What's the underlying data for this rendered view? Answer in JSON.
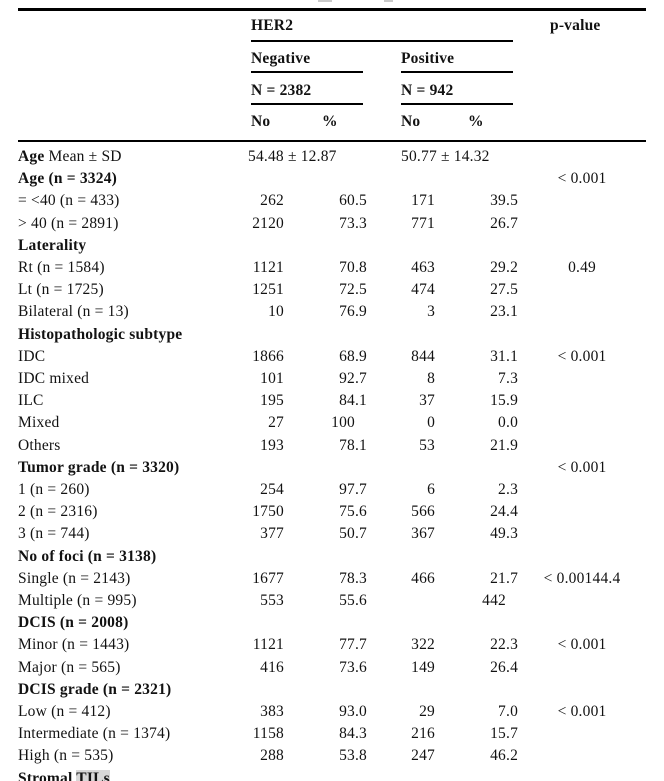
{
  "header": {
    "group_label": "HER2",
    "p_value_label": "p-value",
    "subgroups": [
      {
        "label": "Negative",
        "n_label": "N = 2382",
        "no_label": "No",
        "pct_label": "%"
      },
      {
        "label": "Positive",
        "n_label": "N = 942",
        "no_label": "No",
        "pct_label": "%"
      }
    ]
  },
  "rows": [
    {
      "t": "span",
      "label_bold": "Age",
      "label_rest": " Mean ± SD",
      "neg": "54.48 ± 12.87",
      "pos": "50.77 ± 14.32",
      "pv": ""
    },
    {
      "t": "sec",
      "label": "Age (n = 3324)",
      "pv": "< 0.001"
    },
    {
      "t": "d",
      "label": "= <40 (n = 433)",
      "n1": "262",
      "p1": "60.5",
      "n2": "171",
      "p2": "39.5",
      "pv": ""
    },
    {
      "t": "d",
      "label": "> 40 (n = 2891)",
      "n1": "2120",
      "p1": "73.3",
      "n2": "771",
      "p2": "26.7",
      "pv": ""
    },
    {
      "t": "sec",
      "label": "Laterality",
      "pv": ""
    },
    {
      "t": "d",
      "label": "Rt (n = 1584)",
      "n1": "1121",
      "p1": "70.8",
      "n2": "463",
      "p2": "29.2",
      "pv": "0.49"
    },
    {
      "t": "d",
      "label": "Lt (n = 1725)",
      "n1": "1251",
      "p1": "72.5",
      "n2": "474",
      "p2": "27.5",
      "pv": ""
    },
    {
      "t": "d",
      "label": "Bilateral (n = 13)",
      "n1": "10",
      "p1": "76.9",
      "n2": "3",
      "p2": "23.1",
      "pv": ""
    },
    {
      "t": "sec",
      "label": "Histopathologic subtype",
      "pv": ""
    },
    {
      "t": "d",
      "label": "IDC",
      "n1": "1866",
      "p1": "68.9",
      "n2": "844",
      "p2": "31.1",
      "pv": "< 0.001"
    },
    {
      "t": "d",
      "label": "IDC mixed",
      "n1": "101",
      "p1": "92.7",
      "n2": "8",
      "p2": "7.3",
      "pv": ""
    },
    {
      "t": "d",
      "label": "ILC",
      "n1": "195",
      "p1": "84.1",
      "n2": "37",
      "p2": "15.9",
      "pv": ""
    },
    {
      "t": "d",
      "label": "Mixed",
      "n1": "27",
      "p1": "100",
      "pad1": true,
      "n2": "0",
      "p2": "0.0",
      "pv": ""
    },
    {
      "t": "d",
      "label": "Others",
      "n1": "193",
      "p1": "78.1",
      "n2": "53",
      "p2": "21.9",
      "pv": ""
    },
    {
      "t": "sec",
      "label": "Tumor grade (n = 3320)",
      "pv": "< 0.001"
    },
    {
      "t": "d",
      "label": "1 (n = 260)",
      "n1": "254",
      "p1": "97.7",
      "n2": "6",
      "p2": "2.3",
      "pv": ""
    },
    {
      "t": "d",
      "label": "2 (n = 2316)",
      "n1": "1750",
      "p1": "75.6",
      "n2": "566",
      "p2": "24.4",
      "pv": ""
    },
    {
      "t": "d",
      "label": "3 (n = 744)",
      "n1": "377",
      "p1": "50.7",
      "n2": "367",
      "p2": "49.3",
      "pv": ""
    },
    {
      "t": "sec",
      "label": "No of foci (n = 3138)",
      "pv": ""
    },
    {
      "t": "d",
      "label": "Single (n = 2143)",
      "n1": "1677",
      "p1": "78.3",
      "n2": "466",
      "p2": "21.7",
      "pv": "< 0.00144.4"
    },
    {
      "t": "d",
      "label": "Multiple (n = 995)",
      "n1": "553",
      "p1": "55.6",
      "n2": "",
      "p2": "442",
      "pad2": true,
      "pv": ""
    },
    {
      "t": "sec",
      "label": "DCIS (n = 2008)",
      "pv": ""
    },
    {
      "t": "d",
      "label": "Minor (n = 1443)",
      "n1": "1121",
      "p1": "77.7",
      "n2": "322",
      "p2": "22.3",
      "pv": "< 0.001"
    },
    {
      "t": "d",
      "label": "Major (n = 565)",
      "n1": "416",
      "p1": "73.6",
      "n2": "149",
      "p2": "26.4",
      "pv": ""
    },
    {
      "t": "sec",
      "label": "DCIS grade (n = 2321)",
      "pv": ""
    },
    {
      "t": "d",
      "label": "Low (n = 412)",
      "n1": "383",
      "p1": "93.0",
      "n2": "29",
      "p2": "7.0",
      "pv": "< 0.001"
    },
    {
      "t": "d",
      "label": "Intermediate (n = 1374)",
      "n1": "1158",
      "p1": "84.3",
      "n2": "216",
      "p2": "15.7",
      "pv": ""
    },
    {
      "t": "d",
      "label": "High (n = 535)",
      "n1": "288",
      "p1": "53.8",
      "n2": "247",
      "p2": "46.2",
      "pv": ""
    },
    {
      "t": "partial",
      "label_bold": "Stromal ",
      "label_highlight": "TILs"
    }
  ]
}
